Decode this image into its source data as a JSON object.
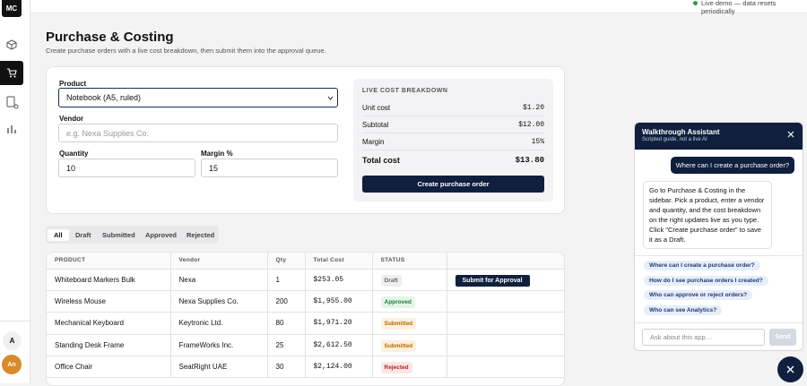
{
  "top_bar": {
    "status": "Live demo — data resets periodically"
  },
  "sidebar": {
    "logo": "MC",
    "user_initial": "A",
    "user_avatar": "An"
  },
  "header": {
    "title": "Purchase & Costing",
    "subtitle": "Create purchase orders with a live cost breakdown, then submit them into the approval queue."
  },
  "form": {
    "product_label": "Product",
    "product_value": "Notebook (A5, ruled)",
    "vendor_label": "Vendor",
    "vendor_placeholder": "e.g. Nexa Supplies Co.",
    "quantity_label": "Quantity",
    "quantity_value": "10",
    "margin_label": "Margin %",
    "margin_value": "15"
  },
  "breakdown": {
    "title": "LIVE COST BREAKDOWN",
    "rows": [
      {
        "label": "Unit cost",
        "value": "$1.20"
      },
      {
        "label": "Subtotal",
        "value": "$12.00"
      },
      {
        "label": "Margin",
        "value": "15%"
      }
    ],
    "total": {
      "label": "Total cost",
      "value": "$13.80"
    },
    "button": "Create purchase order"
  },
  "tabs": [
    "All",
    "Draft",
    "Submitted",
    "Approved",
    "Rejected"
  ],
  "table": {
    "headers": [
      "PRODUCT",
      "Vendor",
      "Qty",
      "Total Cost",
      "STATUS"
    ],
    "rows": [
      {
        "product": "Whiteboard Markers Bulk",
        "vendor": "Nexa",
        "qty": 1,
        "total": "$253.05",
        "status": "Draft",
        "action": "Submit for Approval"
      },
      {
        "product": "Wireless Mouse",
        "vendor": "Nexa Supplies Co.",
        "qty": 200,
        "total": "$1,955.00",
        "status": "Approved"
      },
      {
        "product": "Mechanical Keyboard",
        "vendor": "Keytronic Ltd.",
        "qty": 80,
        "total": "$1,971.20",
        "status": "Submitted"
      },
      {
        "product": "Standing Desk Frame",
        "vendor": "FrameWorks Inc.",
        "qty": 25,
        "total": "$2,612.50",
        "status": "Submitted"
      },
      {
        "product": "Office Chair",
        "vendor": "SeatRight UAE",
        "qty": 30,
        "total": "$2,124.00",
        "status": "Rejected"
      }
    ]
  },
  "assistant": {
    "title": "Walkthrough Assistant",
    "subtitle": "Scripted guide, not a live AI",
    "user_message": "Where can I create a purchase order?",
    "reply": "Go to Purchase & Costing in the sidebar. Pick a product, enter a vendor and quantity, and the cost breakdown on the right updates live as you type. Click \"Create purchase order\" to save it as a Draft.",
    "suggestions": [
      "Where can I create a purchase order?",
      "How do I see purchase orders I created?",
      "Who can approve or reject orders?",
      "Who can see Analytics?"
    ],
    "input_placeholder": "Ask about this app…",
    "send": "Send"
  }
}
